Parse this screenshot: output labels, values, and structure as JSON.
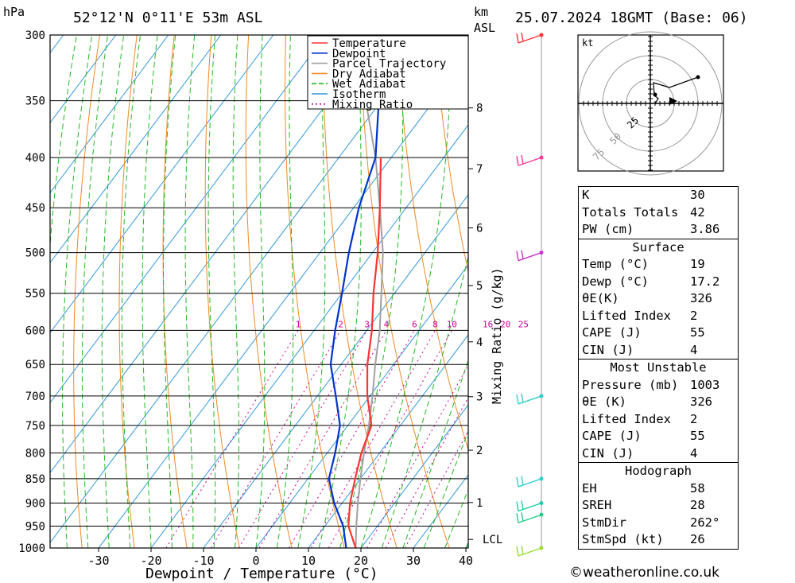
{
  "header": {
    "pressure_unit": "hPa",
    "location": "52°12'N 0°11'E 53m ASL",
    "height_unit_line1": "km",
    "height_unit_line2": "ASL",
    "datetime": "25.07.2024 18GMT (Base: 06)"
  },
  "chart_data": {
    "type": "line",
    "subtype": "skew-t log-p",
    "xlabel": "Dewpoint / Temperature (°C)",
    "ylabel": "",
    "right_axis_label": "Mixing Ratio (g/kg)",
    "pressure_levels": [
      300,
      350,
      400,
      450,
      500,
      550,
      600,
      650,
      700,
      750,
      800,
      850,
      900,
      950,
      1000
    ],
    "temperature_ticks": [
      -30,
      -20,
      -10,
      0,
      10,
      20,
      30,
      40
    ],
    "height_ticks_km": [
      1,
      2,
      3,
      4,
      5,
      6,
      7,
      8
    ],
    "lcl_label": "LCL",
    "lcl_pressure": 980,
    "mixing_ratio_labels": [
      "1",
      "2",
      "3",
      "4",
      "6",
      "8",
      "10",
      "16",
      "20",
      "25"
    ],
    "legend": {
      "placement": "top-right",
      "entries": [
        {
          "name": "Temperature",
          "color": "#ff3333"
        },
        {
          "name": "Dewpoint",
          "color": "#0033cc"
        },
        {
          "name": "Parcel Trajectory",
          "color": "#a0a0a0"
        },
        {
          "name": "Dry Adiabat",
          "color": "#f08a24"
        },
        {
          "name": "Wet Adiabat",
          "color": "#22bb22"
        },
        {
          "name": "Isotherm",
          "color": "#3399dd"
        },
        {
          "name": "Mixing Ratio",
          "color": "#cc0099"
        }
      ]
    },
    "series": [
      {
        "name": "Temperature",
        "points": [
          [
            1000,
            19
          ],
          [
            950,
            14.5
          ],
          [
            900,
            11.5
          ],
          [
            850,
            9
          ],
          [
            800,
            6.5
          ],
          [
            750,
            4.5
          ],
          [
            700,
            -0.5
          ],
          [
            650,
            -5
          ],
          [
            600,
            -9
          ],
          [
            550,
            -14
          ],
          [
            500,
            -19
          ],
          [
            450,
            -25
          ],
          [
            400,
            -32
          ]
        ]
      },
      {
        "name": "Dewpoint",
        "points": [
          [
            1000,
            17.2
          ],
          [
            950,
            13.5
          ],
          [
            900,
            8.5
          ],
          [
            850,
            4
          ],
          [
            800,
            1.5
          ],
          [
            750,
            -1.5
          ],
          [
            700,
            -6.5
          ],
          [
            650,
            -12
          ],
          [
            600,
            -16
          ],
          [
            550,
            -20
          ],
          [
            500,
            -24.5
          ],
          [
            450,
            -29
          ],
          [
            400,
            -33
          ],
          [
            350,
            -40.5
          ],
          [
            300,
            -49
          ]
        ]
      },
      {
        "name": "Parcel Trajectory",
        "points": [
          [
            1000,
            19
          ],
          [
            950,
            16
          ],
          [
            900,
            13
          ],
          [
            850,
            10
          ],
          [
            800,
            7
          ],
          [
            750,
            4
          ],
          [
            700,
            0.5
          ],
          [
            650,
            -3.5
          ],
          [
            600,
            -7.5
          ],
          [
            550,
            -12.5
          ],
          [
            500,
            -18
          ],
          [
            450,
            -25
          ],
          [
            400,
            -33
          ],
          [
            350,
            -43
          ],
          [
            300,
            -55
          ]
        ]
      }
    ],
    "wind_barbs_pressure": [
      300,
      400,
      500,
      700,
      850,
      900,
      925,
      1000
    ],
    "wind_barb_colors": [
      "#ff3333",
      "#ff3399",
      "#cc33cc",
      "#33cccc",
      "#33cccc",
      "#22ccaa",
      "#22cc88",
      "#99dd33"
    ]
  },
  "hodograph": {
    "unit": "kt",
    "ring_labels": [
      "25",
      "50",
      "75"
    ]
  },
  "indices": {
    "general": [
      {
        "label": "K",
        "value": "30"
      },
      {
        "label": "Totals Totals",
        "value": "42"
      },
      {
        "label": "PW (cm)",
        "value": "3.86"
      }
    ],
    "surface": {
      "title": "Surface",
      "rows": [
        {
          "label": "Temp (°C)",
          "value": "19"
        },
        {
          "label": "Dewp (°C)",
          "value": "17.2"
        },
        {
          "label": "θE(K)",
          "value": "326"
        },
        {
          "label": "Lifted Index",
          "value": "2"
        },
        {
          "label": "CAPE (J)",
          "value": "55"
        },
        {
          "label": "CIN (J)",
          "value": "4"
        }
      ]
    },
    "most_unstable": {
      "title": "Most Unstable",
      "rows": [
        {
          "label": "Pressure (mb)",
          "value": "1003"
        },
        {
          "label": "θE (K)",
          "value": "326"
        },
        {
          "label": "Lifted Index",
          "value": "2"
        },
        {
          "label": "CAPE (J)",
          "value": "55"
        },
        {
          "label": "CIN (J)",
          "value": "4"
        }
      ]
    },
    "hodograph": {
      "title": "Hodograph",
      "rows": [
        {
          "label": "EH",
          "value": "58"
        },
        {
          "label": "SREH",
          "value": "28"
        },
        {
          "label": "StmDir",
          "value": "262°"
        },
        {
          "label": "StmSpd (kt)",
          "value": "26"
        }
      ]
    }
  },
  "credit": "©weatheronline.co.uk"
}
